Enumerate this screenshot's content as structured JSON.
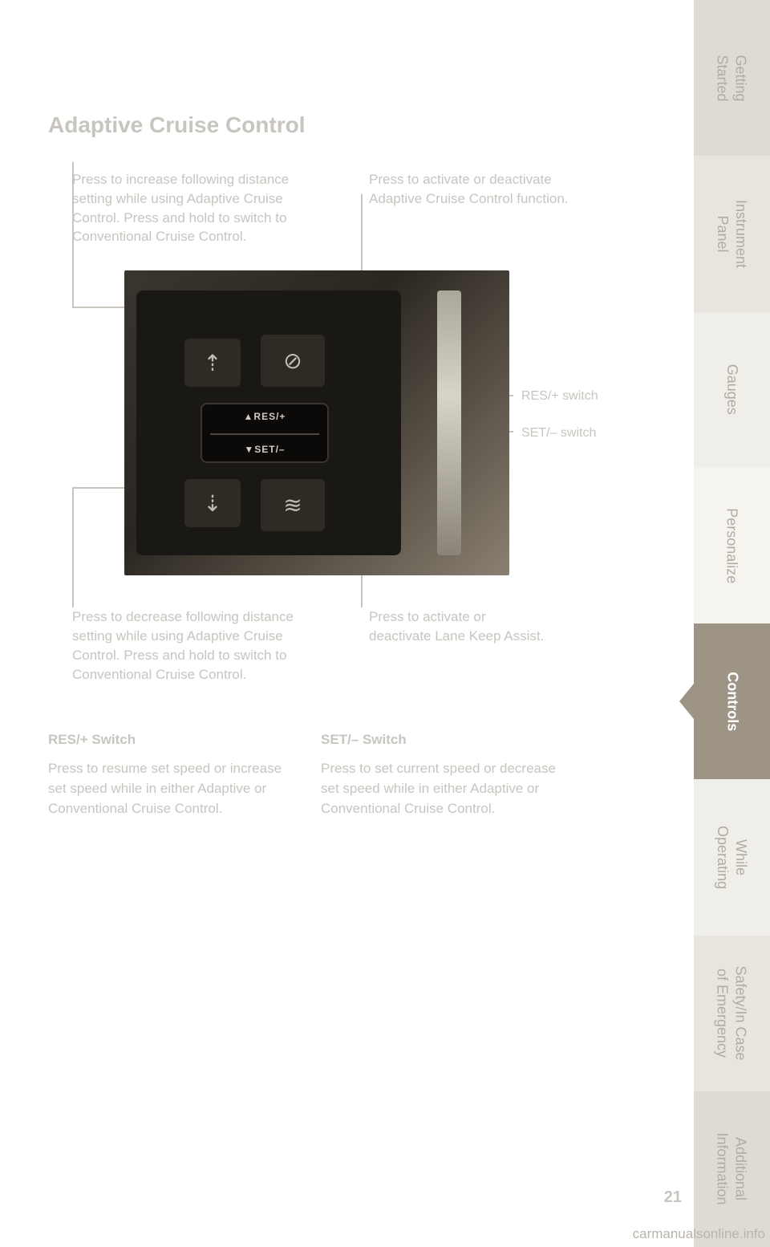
{
  "page": {
    "title": "Adaptive Cruise Control",
    "number": "21",
    "watermark": "carmanualsonline.info"
  },
  "callouts": {
    "upper_left": "Press to increase following distance setting while using Adaptive Cruise Control. Press and hold to switch to Conventional Cruise Control.",
    "upper_right": "Press to activate or deactivate Adaptive Cruise Control function.",
    "lower_left": "Press to decrease following distance setting while using Adaptive Cruise Control. Press and hold to switch to Conventional Cruise Control.",
    "lower_right": "Press to activate or deactivate Lane Keep Assist."
  },
  "side_labels": {
    "res": "RES/+ switch",
    "set": "SET/– switch"
  },
  "photo": {
    "rocker_top": "▲RES/+",
    "rocker_bottom": "▼SET/–"
  },
  "switch_descriptions": {
    "res": {
      "heading": "RES/+ Switch",
      "body": "Press to resume set speed or increase set speed while in either Adaptive or Conventional Cruise Control."
    },
    "set": {
      "heading": "SET/– Switch",
      "body": "Press to set current speed or decrease set speed while in either Adaptive or Conventional Cruise Control."
    }
  },
  "sidebar": {
    "tabs": [
      {
        "label": "Getting\nStarted",
        "bg": "#dedbd5",
        "active": false
      },
      {
        "label": "Instrument\nPanel",
        "bg": "#e8e5df",
        "active": false
      },
      {
        "label": "Gauges",
        "bg": "#f0eee8",
        "active": false
      },
      {
        "label": "Personalize",
        "bg": "#f6f4ee",
        "active": false
      },
      {
        "label": "Controls",
        "bg": "#9e9486",
        "active": true
      },
      {
        "label": "While\nOperating",
        "bg": "#f0eee8",
        "active": false
      },
      {
        "label": "Safety/In Case\nof Emergency",
        "bg": "#e8e5df",
        "active": false
      },
      {
        "label": "Additional\nInformation",
        "bg": "#dedbd5",
        "active": false
      }
    ]
  },
  "colors": {
    "text_muted": "#c8c5bf",
    "tab_active_bg": "#9e9486",
    "tab_text": "#b0aca2"
  }
}
